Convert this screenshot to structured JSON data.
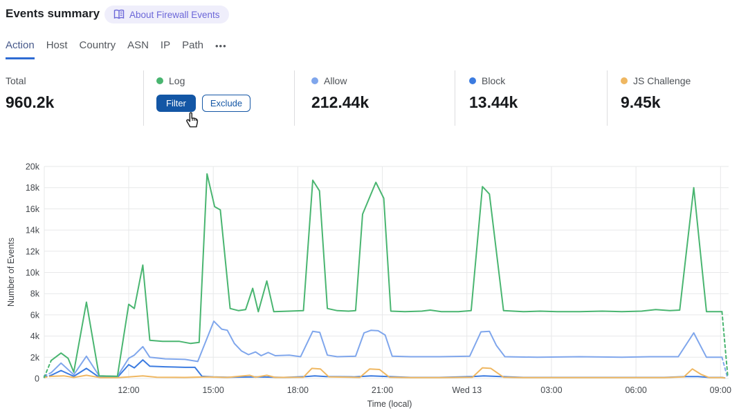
{
  "header": {
    "title": "Events summary",
    "about_badge": "About Firewall Events"
  },
  "tabs": {
    "items": [
      "Action",
      "Host",
      "Country",
      "ASN",
      "IP",
      "Path"
    ],
    "active_index": 0,
    "more_label": "•••"
  },
  "stats": {
    "columns": [
      {
        "label": "Total",
        "value": "960.2k"
      },
      {
        "label": "Log",
        "dot_color": "#49b570",
        "hover_buttons": [
          "Filter",
          "Exclude"
        ]
      },
      {
        "label": "Allow",
        "dot_color": "#7fa6ec",
        "value": "212.44k"
      },
      {
        "label": "Block",
        "dot_color": "#3b7be0",
        "value": "13.44k"
      },
      {
        "label": "JS Challenge",
        "dot_color": "#efb761",
        "value": "9.45k"
      }
    ]
  },
  "chart_data": {
    "type": "line",
    "xlabel": "Time (local)",
    "ylabel": "Number of Events",
    "ylim": [
      0,
      20000
    ],
    "y_tick_labels": [
      "0",
      "2k",
      "4k",
      "6k",
      "8k",
      "10k",
      "12k",
      "14k",
      "16k",
      "18k",
      "20k"
    ],
    "x_unit": "hours since 09:00 (local)",
    "x_range_hours": [
      0,
      24
    ],
    "x_ticks": [
      {
        "t": 3,
        "label": "12:00"
      },
      {
        "t": 6,
        "label": "15:00"
      },
      {
        "t": 9,
        "label": "18:00"
      },
      {
        "t": 12,
        "label": "21:00"
      },
      {
        "t": 15,
        "label": "Wed 13"
      },
      {
        "t": 18,
        "label": "03:00"
      },
      {
        "t": 21,
        "label": "06:00"
      },
      {
        "t": 24,
        "label": "09:00"
      }
    ],
    "grid": true,
    "legend_position": "stat-cards-above-chart",
    "series": [
      {
        "name": "Log",
        "color": "#49b570",
        "pre_dashed": [
          [
            0,
            100
          ],
          [
            0.25,
            1700
          ]
        ],
        "points": [
          [
            0.25,
            1700
          ],
          [
            0.6,
            2400
          ],
          [
            0.85,
            1900
          ],
          [
            1.05,
            600
          ],
          [
            1.5,
            7200
          ],
          [
            1.95,
            250
          ],
          [
            2.6,
            200
          ],
          [
            3.0,
            7000
          ],
          [
            3.2,
            6600
          ],
          [
            3.5,
            10700
          ],
          [
            3.75,
            3600
          ],
          [
            4.2,
            3500
          ],
          [
            4.8,
            3500
          ],
          [
            5.2,
            3300
          ],
          [
            5.5,
            3400
          ],
          [
            5.78,
            19300
          ],
          [
            6.05,
            16200
          ],
          [
            6.25,
            15900
          ],
          [
            6.6,
            6600
          ],
          [
            6.9,
            6400
          ],
          [
            7.15,
            6500
          ],
          [
            7.4,
            8500
          ],
          [
            7.6,
            6300
          ],
          [
            7.9,
            9200
          ],
          [
            8.15,
            6300
          ],
          [
            8.7,
            6350
          ],
          [
            9.2,
            6400
          ],
          [
            9.53,
            18700
          ],
          [
            9.77,
            17700
          ],
          [
            10.05,
            6600
          ],
          [
            10.4,
            6400
          ],
          [
            10.8,
            6350
          ],
          [
            11.05,
            6400
          ],
          [
            11.3,
            15500
          ],
          [
            11.77,
            18500
          ],
          [
            12.05,
            17000
          ],
          [
            12.3,
            6350
          ],
          [
            12.8,
            6300
          ],
          [
            13.4,
            6350
          ],
          [
            13.7,
            6450
          ],
          [
            14.1,
            6300
          ],
          [
            14.7,
            6300
          ],
          [
            15.15,
            6400
          ],
          [
            15.55,
            18100
          ],
          [
            15.8,
            17400
          ],
          [
            16.3,
            6400
          ],
          [
            17.0,
            6300
          ],
          [
            17.6,
            6350
          ],
          [
            18.2,
            6300
          ],
          [
            19.0,
            6300
          ],
          [
            19.8,
            6350
          ],
          [
            20.5,
            6300
          ],
          [
            21.2,
            6350
          ],
          [
            21.7,
            6500
          ],
          [
            22.2,
            6400
          ],
          [
            22.55,
            6450
          ],
          [
            23.05,
            18000
          ],
          [
            23.5,
            6300
          ],
          [
            24.05,
            6300
          ]
        ],
        "post_dashed": [
          [
            24.05,
            6300
          ],
          [
            24.26,
            100
          ]
        ]
      },
      {
        "name": "Allow",
        "color": "#7fa6ec",
        "pre_dashed": [
          [
            0,
            250
          ],
          [
            0.25,
            550
          ]
        ],
        "points": [
          [
            0.25,
            550
          ],
          [
            0.6,
            1450
          ],
          [
            1.05,
            350
          ],
          [
            1.5,
            2100
          ],
          [
            1.95,
            250
          ],
          [
            2.6,
            200
          ],
          [
            3.0,
            1900
          ],
          [
            3.2,
            2200
          ],
          [
            3.5,
            3000
          ],
          [
            3.75,
            2000
          ],
          [
            4.3,
            1850
          ],
          [
            5.0,
            1800
          ],
          [
            5.45,
            1600
          ],
          [
            6.02,
            5400
          ],
          [
            6.3,
            4650
          ],
          [
            6.5,
            4550
          ],
          [
            6.75,
            3300
          ],
          [
            7.0,
            2600
          ],
          [
            7.25,
            2250
          ],
          [
            7.5,
            2500
          ],
          [
            7.7,
            2150
          ],
          [
            7.95,
            2450
          ],
          [
            8.2,
            2150
          ],
          [
            8.7,
            2200
          ],
          [
            9.1,
            2050
          ],
          [
            9.53,
            4450
          ],
          [
            9.78,
            4350
          ],
          [
            10.05,
            2200
          ],
          [
            10.4,
            2050
          ],
          [
            11.05,
            2100
          ],
          [
            11.35,
            4300
          ],
          [
            11.6,
            4550
          ],
          [
            11.85,
            4500
          ],
          [
            12.1,
            4100
          ],
          [
            12.35,
            2100
          ],
          [
            13.0,
            2050
          ],
          [
            14.0,
            2050
          ],
          [
            15.1,
            2100
          ],
          [
            15.5,
            4400
          ],
          [
            15.8,
            4450
          ],
          [
            16.05,
            3100
          ],
          [
            16.35,
            2050
          ],
          [
            17.5,
            2000
          ],
          [
            19.0,
            2050
          ],
          [
            20.5,
            2000
          ],
          [
            21.5,
            2050
          ],
          [
            22.5,
            2050
          ],
          [
            23.05,
            4300
          ],
          [
            23.5,
            2000
          ],
          [
            24.05,
            2000
          ]
        ],
        "post_dashed": [
          [
            24.05,
            2000
          ],
          [
            24.25,
            50
          ]
        ]
      },
      {
        "name": "Block",
        "color": "#3b7be0",
        "pre_dashed": [
          [
            0,
            150
          ],
          [
            0.25,
            300
          ]
        ],
        "points": [
          [
            0.25,
            300
          ],
          [
            0.6,
            750
          ],
          [
            1.05,
            200
          ],
          [
            1.5,
            950
          ],
          [
            1.95,
            120
          ],
          [
            2.6,
            100
          ],
          [
            3.0,
            1300
          ],
          [
            3.2,
            1000
          ],
          [
            3.5,
            1750
          ],
          [
            3.75,
            1150
          ],
          [
            4.3,
            1100
          ],
          [
            5.0,
            1050
          ],
          [
            5.35,
            1050
          ],
          [
            5.6,
            200
          ],
          [
            6.0,
            150
          ],
          [
            6.5,
            120
          ],
          [
            7.5,
            150
          ],
          [
            8.5,
            100
          ],
          [
            9.3,
            180
          ],
          [
            9.6,
            250
          ],
          [
            10.0,
            180
          ],
          [
            11.0,
            150
          ],
          [
            11.6,
            250
          ],
          [
            12.2,
            180
          ],
          [
            13.0,
            100
          ],
          [
            14.0,
            100
          ],
          [
            15.2,
            180
          ],
          [
            15.6,
            250
          ],
          [
            16.2,
            180
          ],
          [
            17.0,
            100
          ],
          [
            18.0,
            100
          ],
          [
            19.0,
            100
          ],
          [
            20.0,
            100
          ],
          [
            21.0,
            100
          ],
          [
            22.0,
            100
          ],
          [
            22.8,
            180
          ],
          [
            23.2,
            180
          ],
          [
            23.6,
            100
          ],
          [
            24.05,
            100
          ]
        ],
        "post_dashed": [
          [
            24.05,
            100
          ],
          [
            24.2,
            30
          ]
        ]
      },
      {
        "name": "JS Challenge",
        "color": "#efb761",
        "pre_dashed": [
          [
            0,
            100
          ],
          [
            0.25,
            200
          ]
        ],
        "points": [
          [
            0.25,
            200
          ],
          [
            0.7,
            250
          ],
          [
            1.05,
            100
          ],
          [
            1.5,
            300
          ],
          [
            2.0,
            80
          ],
          [
            2.6,
            80
          ],
          [
            3.0,
            150
          ],
          [
            3.5,
            250
          ],
          [
            4.0,
            120
          ],
          [
            5.0,
            100
          ],
          [
            5.75,
            150
          ],
          [
            6.5,
            100
          ],
          [
            7.3,
            300
          ],
          [
            7.5,
            120
          ],
          [
            7.9,
            300
          ],
          [
            8.2,
            100
          ],
          [
            9.2,
            120
          ],
          [
            9.5,
            950
          ],
          [
            9.8,
            900
          ],
          [
            10.1,
            150
          ],
          [
            11.2,
            100
          ],
          [
            11.55,
            900
          ],
          [
            11.9,
            850
          ],
          [
            12.25,
            120
          ],
          [
            13.0,
            80
          ],
          [
            14.0,
            80
          ],
          [
            15.2,
            120
          ],
          [
            15.55,
            1000
          ],
          [
            15.85,
            950
          ],
          [
            16.3,
            120
          ],
          [
            17.0,
            80
          ],
          [
            18.0,
            80
          ],
          [
            19.0,
            80
          ],
          [
            20.0,
            80
          ],
          [
            21.0,
            80
          ],
          [
            22.0,
            80
          ],
          [
            22.7,
            150
          ],
          [
            23.0,
            900
          ],
          [
            23.3,
            400
          ],
          [
            23.6,
            80
          ],
          [
            24.05,
            80
          ]
        ],
        "post_dashed": [
          [
            24.05,
            80
          ],
          [
            24.2,
            30
          ]
        ]
      }
    ]
  }
}
